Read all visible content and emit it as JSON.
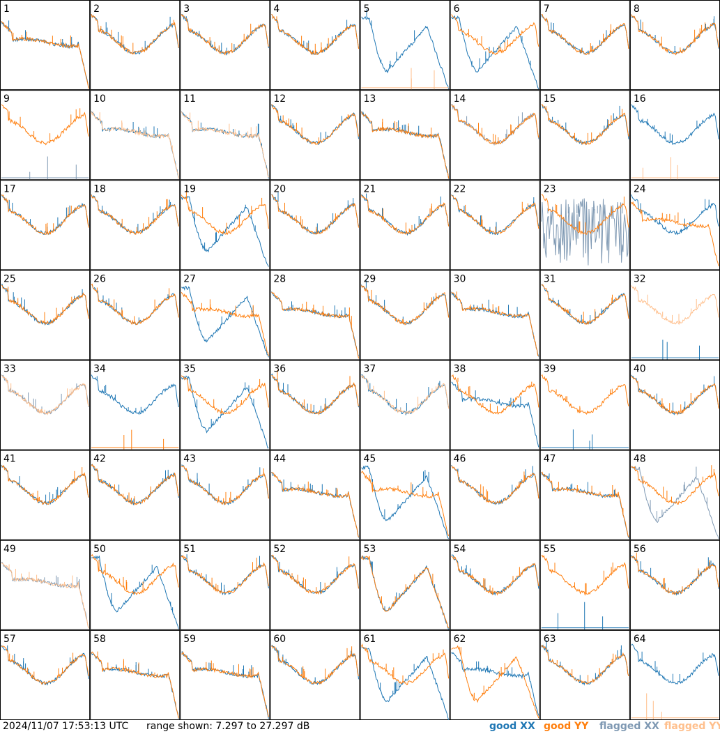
{
  "footer": {
    "timestamp": "2024/11/07 17:53:13 UTC",
    "range_text": "range shown: 7.297 to 27.297 dB"
  },
  "legend": [
    {
      "label": "good XX",
      "color": "#1f77b4"
    },
    {
      "label": "good YY",
      "color": "#ff7f0e"
    },
    {
      "label": "flagged XX",
      "color": "#7f99b3"
    },
    {
      "label": "flagged YY",
      "color": "#ffbf8c"
    }
  ],
  "chart_data": {
    "type": "line",
    "grid": "8x8 small multiples",
    "ylim_db": [
      7.297,
      27.297
    ],
    "series_names": [
      "good XX",
      "good YY",
      "flagged XX",
      "flagged YY"
    ],
    "panels": [
      {
        "label": "1",
        "xx": "good",
        "yy": "good",
        "xx_shape": "flatdrop",
        "yy_shape": "flatdrop"
      },
      {
        "label": "2",
        "xx": "good",
        "yy": "good",
        "xx_shape": "bowl",
        "yy_shape": "bowl"
      },
      {
        "label": "3",
        "xx": "good",
        "yy": "good",
        "xx_shape": "bowl",
        "yy_shape": "bowl"
      },
      {
        "label": "4",
        "xx": "good",
        "yy": "good",
        "xx_shape": "bowl",
        "yy_shape": "bowl"
      },
      {
        "label": "5",
        "xx": "good",
        "yy": "flagged",
        "xx_shape": "dipdrop",
        "yy_shape": "baseline"
      },
      {
        "label": "6",
        "xx": "good",
        "yy": "good",
        "xx_shape": "dipdrop",
        "yy_shape": "bowl"
      },
      {
        "label": "7",
        "xx": "good",
        "yy": "good",
        "xx_shape": "bowl",
        "yy_shape": "bowl"
      },
      {
        "label": "8",
        "xx": "good",
        "yy": "good",
        "xx_shape": "bowl",
        "yy_shape": "bowl"
      },
      {
        "label": "9",
        "xx": "flagged",
        "yy": "good",
        "xx_shape": "baseline",
        "yy_shape": "bowl"
      },
      {
        "label": "10",
        "xx": "good",
        "yy": "flagged",
        "xx_shape": "flatdrop",
        "yy_shape": "flatdrop"
      },
      {
        "label": "11",
        "xx": "good",
        "yy": "flagged",
        "xx_shape": "flatdrop",
        "yy_shape": "flatdrop"
      },
      {
        "label": "12",
        "xx": "good",
        "yy": "good",
        "xx_shape": "bowl",
        "yy_shape": "bowl"
      },
      {
        "label": "13",
        "xx": "good",
        "yy": "good",
        "xx_shape": "flatdrop",
        "yy_shape": "flatdrop"
      },
      {
        "label": "14",
        "xx": "flagged",
        "yy": "good",
        "xx_shape": "bowl",
        "yy_shape": "bowl"
      },
      {
        "label": "15",
        "xx": "good",
        "yy": "good",
        "xx_shape": "bowl",
        "yy_shape": "bowl"
      },
      {
        "label": "16",
        "xx": "good",
        "yy": "flagged",
        "xx_shape": "bowl",
        "yy_shape": "baseline"
      },
      {
        "label": "17",
        "xx": "good",
        "yy": "good",
        "xx_shape": "bowl",
        "yy_shape": "bowl"
      },
      {
        "label": "18",
        "xx": "good",
        "yy": "good",
        "xx_shape": "bowl",
        "yy_shape": "bowl"
      },
      {
        "label": "19",
        "xx": "good",
        "yy": "good",
        "xx_shape": "dipdrop",
        "yy_shape": "bowl"
      },
      {
        "label": "20",
        "xx": "good",
        "yy": "good",
        "xx_shape": "bowl",
        "yy_shape": "bowl"
      },
      {
        "label": "21",
        "xx": "good",
        "yy": "good",
        "xx_shape": "bowl",
        "yy_shape": "bowl"
      },
      {
        "label": "22",
        "xx": "good",
        "yy": "good",
        "xx_shape": "bowl",
        "yy_shape": "bowl"
      },
      {
        "label": "23",
        "xx": "flagged",
        "yy": "good",
        "xx_shape": "noisy",
        "yy_shape": "bowl"
      },
      {
        "label": "24",
        "xx": "good",
        "yy": "good",
        "xx_shape": "bowl",
        "yy_shape": "flatdrop"
      },
      {
        "label": "25",
        "xx": "good",
        "yy": "good",
        "xx_shape": "bowl",
        "yy_shape": "bowl"
      },
      {
        "label": "26",
        "xx": "good",
        "yy": "good",
        "xx_shape": "bowl",
        "yy_shape": "bowl"
      },
      {
        "label": "27",
        "xx": "good",
        "yy": "good",
        "xx_shape": "dipdrop",
        "yy_shape": "flatdrop"
      },
      {
        "label": "28",
        "xx": "good",
        "yy": "good",
        "xx_shape": "flatdrop",
        "yy_shape": "flatdrop"
      },
      {
        "label": "29",
        "xx": "good",
        "yy": "good",
        "xx_shape": "bowl",
        "yy_shape": "bowl"
      },
      {
        "label": "30",
        "xx": "good",
        "yy": "good",
        "xx_shape": "flatdrop",
        "yy_shape": "flatdrop"
      },
      {
        "label": "31",
        "xx": "good",
        "yy": "good",
        "xx_shape": "bowl",
        "yy_shape": "bowl"
      },
      {
        "label": "32",
        "xx": "good",
        "yy": "flagged",
        "xx_shape": "baseline",
        "yy_shape": "bowl"
      },
      {
        "label": "33",
        "xx": "flagged",
        "yy": "flagged",
        "xx_shape": "bowl",
        "yy_shape": "bowl"
      },
      {
        "label": "34",
        "xx": "good",
        "yy": "good",
        "xx_shape": "bowl",
        "yy_shape": "baseline"
      },
      {
        "label": "35",
        "xx": "good",
        "yy": "good",
        "xx_shape": "dipdrop",
        "yy_shape": "bowl"
      },
      {
        "label": "36",
        "xx": "good",
        "yy": "good",
        "xx_shape": "bowl",
        "yy_shape": "bowl"
      },
      {
        "label": "37",
        "xx": "good",
        "yy": "flagged",
        "xx_shape": "bowl",
        "yy_shape": "bowl"
      },
      {
        "label": "38",
        "xx": "good",
        "yy": "good",
        "xx_shape": "flatdrop",
        "yy_shape": "bowl"
      },
      {
        "label": "39",
        "xx": "good",
        "yy": "good",
        "xx_shape": "baseline",
        "yy_shape": "bowl"
      },
      {
        "label": "40",
        "xx": "good",
        "yy": "good",
        "xx_shape": "bowl",
        "yy_shape": "bowl"
      },
      {
        "label": "41",
        "xx": "good",
        "yy": "good",
        "xx_shape": "bowl",
        "yy_shape": "bowl"
      },
      {
        "label": "42",
        "xx": "good",
        "yy": "good",
        "xx_shape": "bowl",
        "yy_shape": "bowl"
      },
      {
        "label": "43",
        "xx": "good",
        "yy": "good",
        "xx_shape": "bowl",
        "yy_shape": "bowl"
      },
      {
        "label": "44",
        "xx": "good",
        "yy": "good",
        "xx_shape": "flatdrop",
        "yy_shape": "flatdrop"
      },
      {
        "label": "45",
        "xx": "good",
        "yy": "good",
        "xx_shape": "dipdrop",
        "yy_shape": "flatdrop"
      },
      {
        "label": "46",
        "xx": "good",
        "yy": "good",
        "xx_shape": "bowl",
        "yy_shape": "bowl"
      },
      {
        "label": "47",
        "xx": "good",
        "yy": "good",
        "xx_shape": "flatdrop",
        "yy_shape": "flatdrop"
      },
      {
        "label": "48",
        "xx": "flagged",
        "yy": "good",
        "xx_shape": "dipdrop",
        "yy_shape": "bowl"
      },
      {
        "label": "49",
        "xx": "flagged",
        "yy": "flagged",
        "xx_shape": "flatdrop",
        "yy_shape": "flatdrop"
      },
      {
        "label": "50",
        "xx": "good",
        "yy": "good",
        "xx_shape": "dipdrop",
        "yy_shape": "bowl"
      },
      {
        "label": "51",
        "xx": "good",
        "yy": "good",
        "xx_shape": "bowl",
        "yy_shape": "bowl"
      },
      {
        "label": "52",
        "xx": "good",
        "yy": "good",
        "xx_shape": "bowl",
        "yy_shape": "bowl"
      },
      {
        "label": "53",
        "xx": "good",
        "yy": "good",
        "xx_shape": "dipdrop",
        "yy_shape": "dipdrop"
      },
      {
        "label": "54",
        "xx": "good",
        "yy": "good",
        "xx_shape": "bowl",
        "yy_shape": "bowl"
      },
      {
        "label": "55",
        "xx": "good",
        "yy": "good",
        "xx_shape": "baseline",
        "yy_shape": "bowl"
      },
      {
        "label": "56",
        "xx": "good",
        "yy": "good",
        "xx_shape": "bowl",
        "yy_shape": "bowl"
      },
      {
        "label": "57",
        "xx": "good",
        "yy": "good",
        "xx_shape": "bowl",
        "yy_shape": "bowl"
      },
      {
        "label": "58",
        "xx": "good",
        "yy": "good",
        "xx_shape": "flatdrop",
        "yy_shape": "flatdrop"
      },
      {
        "label": "59",
        "xx": "good",
        "yy": "good",
        "xx_shape": "flatdrop",
        "yy_shape": "flatdrop"
      },
      {
        "label": "60",
        "xx": "good",
        "yy": "good",
        "xx_shape": "bowl",
        "yy_shape": "bowl"
      },
      {
        "label": "61",
        "xx": "good",
        "yy": "good",
        "xx_shape": "dipdrop",
        "yy_shape": "bowl"
      },
      {
        "label": "62",
        "xx": "good",
        "yy": "good",
        "xx_shape": "flatdrop",
        "yy_shape": "dipdrop"
      },
      {
        "label": "63",
        "xx": "good",
        "yy": "good",
        "xx_shape": "bowl",
        "yy_shape": "bowl"
      },
      {
        "label": "64",
        "xx": "good",
        "yy": "flagged",
        "xx_shape": "bowl",
        "yy_shape": "baseline"
      }
    ]
  }
}
